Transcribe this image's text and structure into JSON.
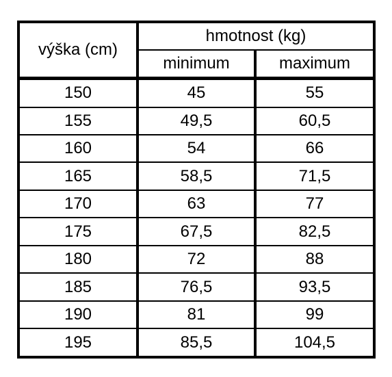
{
  "table": {
    "header": {
      "height_label": "výška (cm)",
      "weight_label": "hmotnost (kg)",
      "min_label": "minimum",
      "max_label": "maximum"
    },
    "rows": [
      {
        "height": "150",
        "min": "45",
        "max": "55"
      },
      {
        "height": "155",
        "min": "49,5",
        "max": "60,5"
      },
      {
        "height": "160",
        "min": "54",
        "max": "66"
      },
      {
        "height": "165",
        "min": "58,5",
        "max": "71,5"
      },
      {
        "height": "170",
        "min": "63",
        "max": "77"
      },
      {
        "height": "175",
        "min": "67,5",
        "max": "82,5"
      },
      {
        "height": "180",
        "min": "72",
        "max": "88"
      },
      {
        "height": "185",
        "min": "76,5",
        "max": "93,5"
      },
      {
        "height": "190",
        "min": "81",
        "max": "99"
      },
      {
        "height": "195",
        "min": "85,5",
        "max": "104,5"
      }
    ]
  }
}
